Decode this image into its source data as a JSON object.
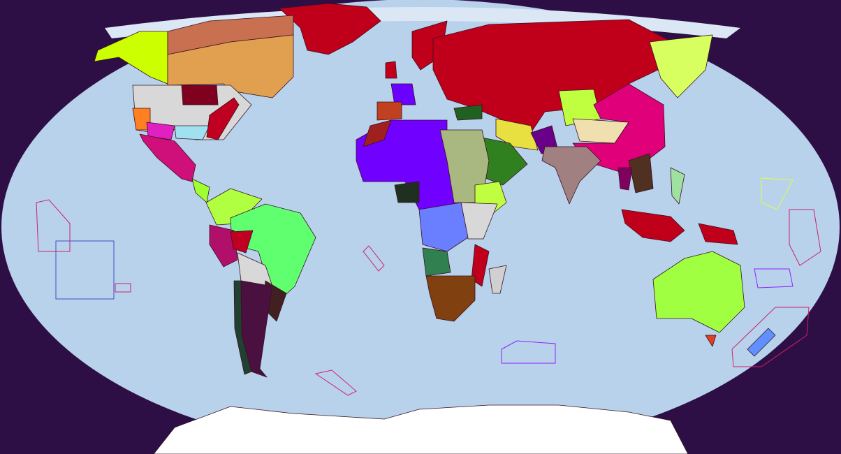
{
  "colors": {
    "background": "#2e0f45",
    "ocean": "#b8d2ec",
    "ice": "#dbe7f5",
    "antarctica": "#ffffff",
    "greenland": "#c0001a",
    "alaska": "#ccff00",
    "canada": "#e0a050",
    "canada_north": "#c87050",
    "usa_base": "#d8d8d8",
    "usa_maroon": "#800020",
    "usa_orange": "#ff8020",
    "usa_magenta": "#e020c0",
    "usa_cyan": "#a0e0f0",
    "usa_east": "#c00020",
    "mexico": "#d0107a",
    "central_america": "#a0ff30",
    "gran_colombia": "#b0ff40",
    "brazil": "#60ff70",
    "peru": "#b0106a",
    "bolivia": "#c00020",
    "argentina": "#4a1040",
    "chile": "#204030",
    "paraguay": "#d8d8d8",
    "uruguay": "#402020",
    "france": "#6a00ff",
    "iberia": "#c04020",
    "scandinavia": "#c0001a",
    "russia": "#c0001a",
    "turkey": "#206020",
    "china": "#e0007a",
    "xinjiang": "#c0ff40",
    "mongolia": "#f0e0b0",
    "manchuria_japan": "#d8ff60",
    "india": "#a08080",
    "pakistan": "#6a008a",
    "iran": "#e8e040",
    "arabia": "#308020",
    "west_africa": "#7000ff",
    "morocco": "#a02020",
    "egypt_sudan": "#a8b880",
    "ethiopia": "#c0ff40",
    "congo": "#6a7fff",
    "east_africa": "#d8d8d8",
    "angola": "#308050",
    "south_africa": "#804010",
    "mozambique": "#c0001a",
    "madagascar": "#d0d0d0",
    "nigeria": "#203020",
    "indochina": "#503020",
    "siam": "#800060",
    "indonesia": "#c0001a",
    "philippines": "#a0e0a0",
    "new_guinea": "#c0001a",
    "australia": "#a0ff40",
    "tasmania": "#e04020",
    "new_zealand": "#6090ff",
    "border_pink": "#d0206a",
    "border_blue": "#4050c0",
    "border_purple": "#9020ff",
    "border_yellow": "#e0ff40"
  }
}
